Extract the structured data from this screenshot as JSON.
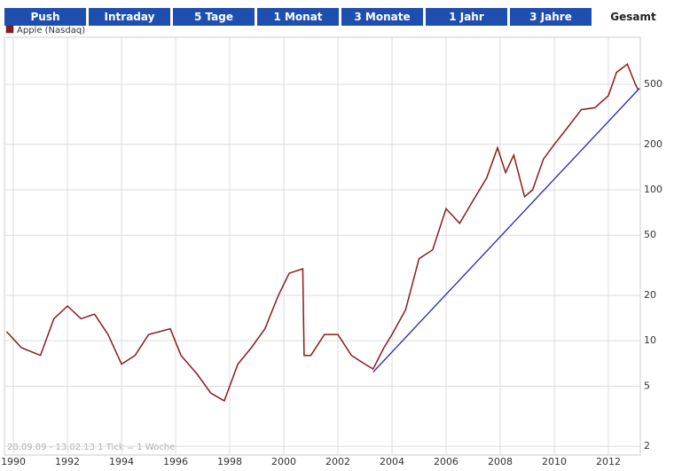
{
  "tabs": [
    "Push",
    "Intraday",
    "5 Tage",
    "1 Monat",
    "3 Monate",
    "1 Jahr",
    "3 Jahre",
    "Gesamt"
  ],
  "active_tab": 7,
  "chart_data": {
    "type": "line",
    "log_scale": true,
    "grid": true,
    "annotation": "28.09.89 - 13.02.13   1 Tick = 1 Woche",
    "x": [
      1989.75,
      1990.3,
      1991.0,
      1991.5,
      1992.0,
      1992.5,
      1993.0,
      1993.5,
      1994.0,
      1994.5,
      1995.0,
      1995.8,
      1996.2,
      1996.8,
      1997.3,
      1997.8,
      1998.3,
      1998.8,
      1999.3,
      1999.8,
      2000.2,
      2000.7,
      2000.75,
      2001.0,
      2001.5,
      2002.0,
      2002.5,
      2003.0,
      2003.3,
      2003.7,
      2004.0,
      2004.5,
      2005.0,
      2005.5,
      2006.0,
      2006.5,
      2007.0,
      2007.5,
      2007.9,
      2008.2,
      2008.5,
      2008.9,
      2009.2,
      2009.6,
      2010.0,
      2010.5,
      2011.0,
      2011.5,
      2012.0,
      2012.3,
      2012.7,
      2013.0,
      2013.1
    ],
    "series": [
      {
        "name": "Apple (Nasdaq)",
        "color": "#8b1a1a",
        "values": [
          11.5,
          9,
          8,
          14,
          17,
          14,
          15,
          11,
          7,
          8,
          11,
          12,
          8,
          6,
          4.5,
          4,
          7,
          9,
          12,
          20,
          28,
          30,
          8,
          8,
          11,
          11,
          8,
          7,
          6.5,
          9,
          11,
          16,
          35,
          40,
          75,
          60,
          85,
          120,
          190,
          130,
          170,
          90,
          100,
          160,
          200,
          260,
          340,
          350,
          420,
          600,
          680,
          500,
          460
        ]
      }
    ],
    "trendline": {
      "x": [
        2003.3,
        2013.15
      ],
      "y": [
        6.2,
        470
      ],
      "color": "#2222bb"
    },
    "xlim": [
      1989.67,
      2013.18
    ],
    "xticks": [
      1990,
      1992,
      1994,
      1996,
      1998,
      2000,
      2002,
      2004,
      2006,
      2008,
      2010,
      2012
    ],
    "ylim": [
      1.75,
      1025
    ],
    "yticks": [
      2,
      5,
      10,
      20,
      50,
      100,
      200,
      500
    ]
  }
}
